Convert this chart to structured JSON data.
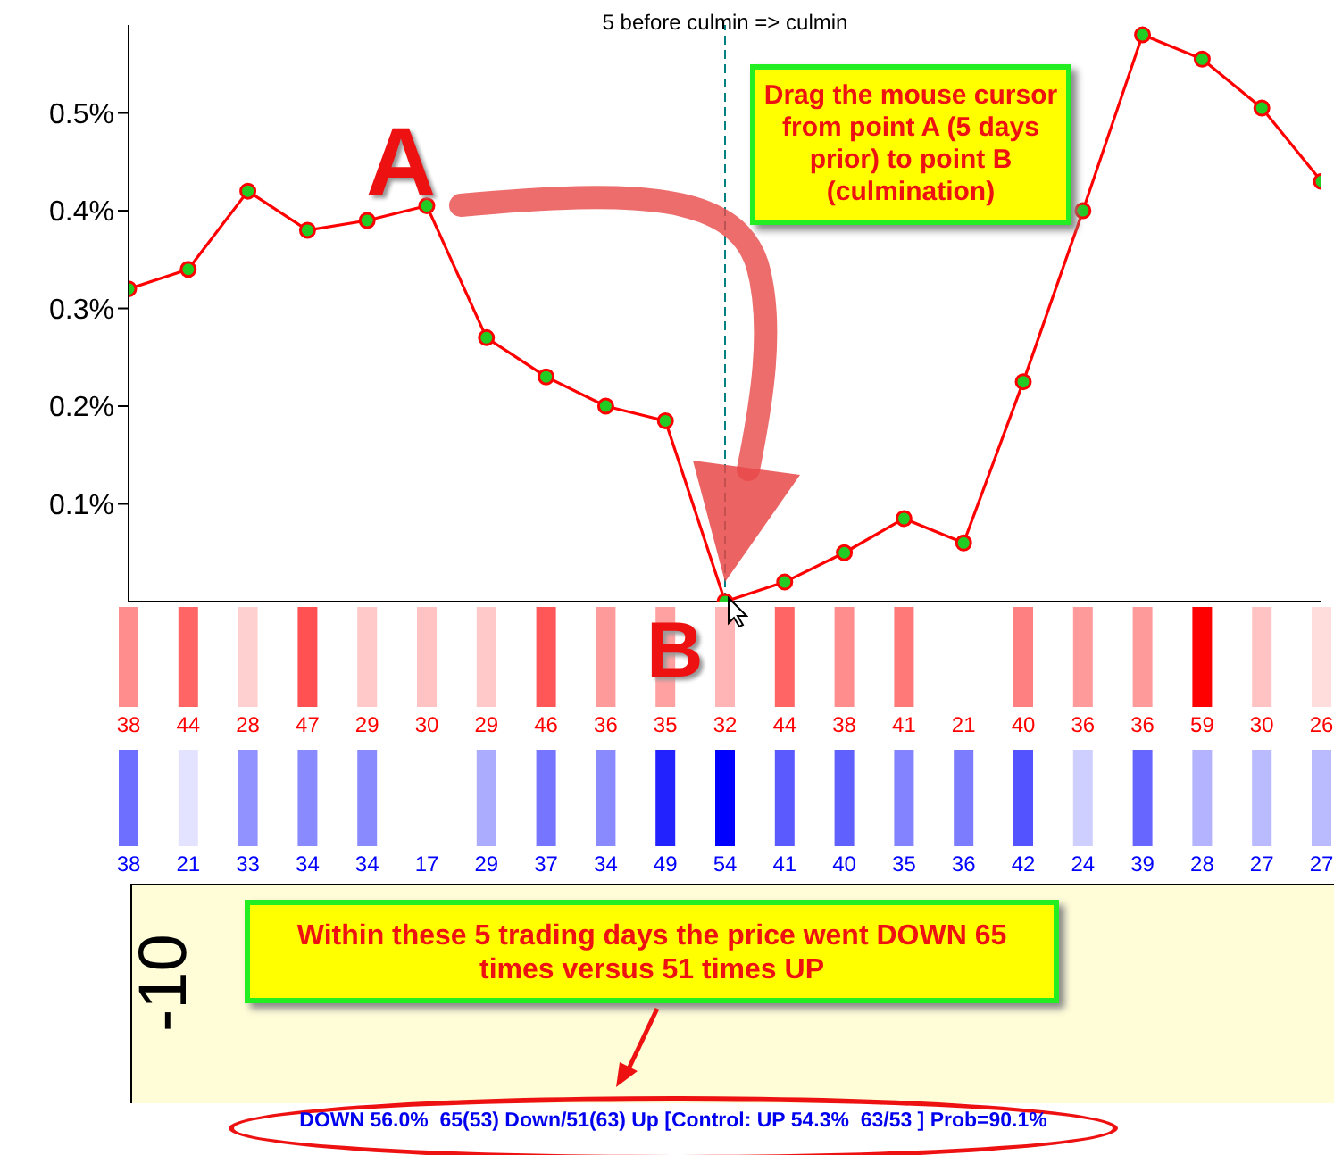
{
  "chart_data": [
    {
      "type": "line",
      "categories": [
        null,
        null,
        null,
        null,
        null,
        null,
        null,
        null,
        null,
        null,
        null,
        null,
        null,
        null,
        null,
        null,
        null,
        null,
        null,
        null,
        null
      ],
      "series": [
        {
          "color": "#ff0000",
          "values": [
            0.32,
            0.34,
            0.42,
            0.38,
            0.39,
            0.405,
            0.27,
            0.23,
            0.2,
            0.185,
            0.0,
            0.02,
            0.05,
            0.085,
            0.06,
            0.225,
            0.4,
            0.58,
            0.555,
            0.505,
            0.43
          ]
        }
      ],
      "ylim": [
        0,
        0.59
      ],
      "yticks": [
        {
          "value": 0.1,
          "label": "0.1%"
        },
        {
          "value": 0.2,
          "label": "0.2%"
        },
        {
          "value": 0.3,
          "label": "0.3%"
        },
        {
          "value": 0.4,
          "label": "0.4%"
        },
        {
          "value": 0.5,
          "label": "0.5%"
        }
      ],
      "tick_labels": "y",
      "marker": "circle",
      "line_style": "solid",
      "ref_lines": [
        {
          "axis": "x",
          "label": "5 before culmin => culmin",
          "color": "#008080",
          "line_style": "dashed"
        }
      ],
      "annotations": [
        "A",
        "B",
        "Drag the mouse cursor from point A (5 days prior) to point B (culmination)"
      ]
    },
    {
      "type": "other",
      "categories": [
        null,
        null,
        null,
        null,
        null,
        null,
        null,
        null,
        null,
        null,
        null,
        null,
        null,
        null,
        null,
        null,
        null,
        null,
        null,
        null,
        null
      ],
      "color": "#ff0000",
      "data_labels": true,
      "values": [
        38,
        44,
        28,
        47,
        29,
        30,
        29,
        46,
        36,
        35,
        32,
        44,
        38,
        41,
        21,
        40,
        36,
        36,
        59,
        30,
        26
      ]
    },
    {
      "type": "other",
      "categories": [
        null,
        null,
        null,
        null,
        null,
        null,
        null,
        null,
        null,
        null,
        null,
        null,
        null,
        null,
        null,
        null,
        null,
        null,
        null,
        null,
        null
      ],
      "color": "#0000ff",
      "data_labels": true,
      "values": [
        38,
        21,
        33,
        34,
        34,
        17,
        29,
        37,
        34,
        49,
        54,
        41,
        40,
        35,
        36,
        42,
        24,
        39,
        28,
        27,
        27
      ],
      "annotations": [
        "-10",
        "Within these 5 trading days the price went DOWN 65 times versus 51 times UP",
        "DOWN 56.0%  65(53) Down/51(63) Up [Control: UP 54.3%  63/53 ] Prob=90.1%"
      ]
    }
  ]
}
